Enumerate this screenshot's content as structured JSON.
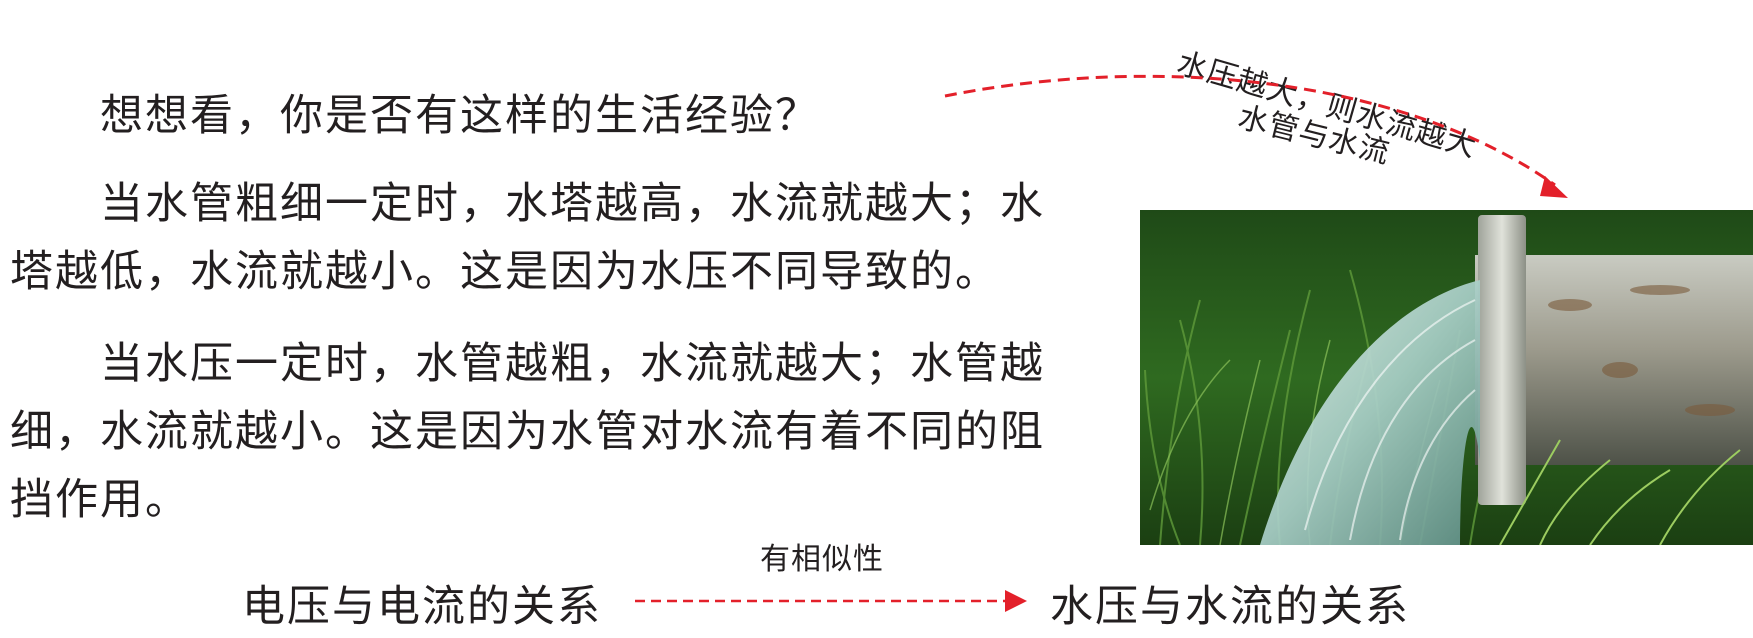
{
  "intro": {
    "question": "想想看，你是否有这样的生活经验？",
    "paragraph_tower": "当水管粗细一定时，水塔越高，水流就越大；水塔越低，水流就越小。这是因为水压不同导致的。",
    "paragraph_pipe": "当水压一定时，水管越粗，水流就越大；水管越细，水流就越小。这是因为水管对水流有着不同的阻挡作用。"
  },
  "figure": {
    "curve_label_top": "水压越大，则水流越大",
    "curve_label_bottom": "水管与水流",
    "photo_subject": "water-pipe-outflow-on-grass"
  },
  "relation": {
    "left": "电压与电流的关系",
    "connector_label": "有相似性",
    "right": "水压与水流的关系"
  },
  "colors": {
    "text": "#231f20",
    "arrow": "#e3202a"
  }
}
